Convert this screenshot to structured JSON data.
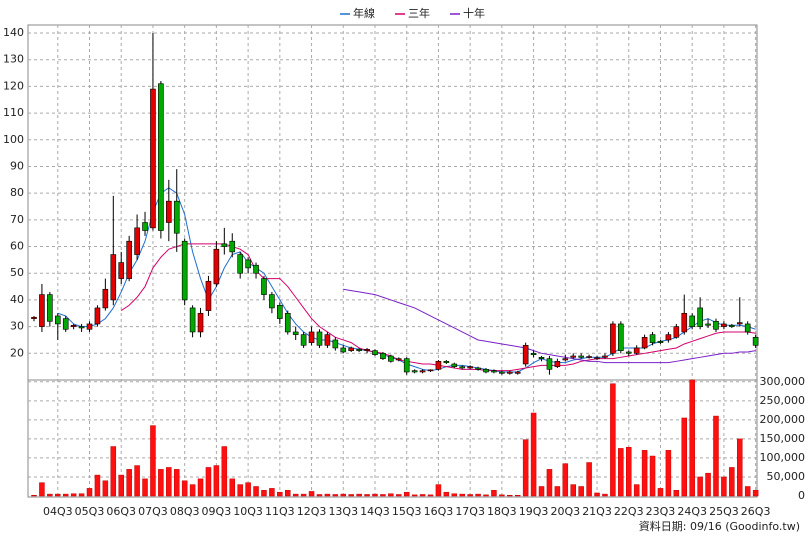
{
  "chart_data": {
    "type": "candlestick",
    "categories": [
      null,
      null,
      null,
      "04Q3",
      null,
      null,
      null,
      "05Q3",
      null,
      null,
      null,
      "06Q3",
      null,
      null,
      null,
      "07Q3",
      null,
      null,
      null,
      "08Q3",
      null,
      null,
      null,
      "09Q3",
      null,
      null,
      null,
      "10Q3",
      null,
      null,
      null,
      "11Q3",
      null,
      null,
      null,
      "12Q3",
      null,
      null,
      null,
      "13Q3",
      null,
      null,
      null,
      "14Q3",
      null,
      null,
      null,
      "15Q3",
      null,
      null,
      null,
      "16Q3",
      null,
      null,
      null,
      "17Q3",
      null,
      null,
      null,
      "18Q3",
      null,
      null,
      null,
      "19Q3",
      null,
      null,
      null,
      "20Q3",
      null,
      null,
      null,
      "21Q3",
      null,
      null,
      null,
      "22Q3",
      null,
      null,
      null,
      "23Q3",
      null,
      null,
      null,
      "24Q3",
      null,
      null,
      null,
      "25Q3",
      null,
      null,
      null,
      "26Q3"
    ],
    "open": [
      33,
      30,
      42,
      34,
      33,
      30,
      30,
      29,
      31,
      37,
      40,
      48,
      48,
      57,
      69,
      67,
      121,
      69,
      77,
      62,
      37,
      28,
      36,
      46,
      61,
      62,
      57,
      55,
      53,
      48,
      42,
      38,
      35,
      28,
      27,
      24,
      28,
      23,
      25,
      22,
      21,
      21.5,
      21,
      21,
      20,
      19,
      17.5,
      18,
      13.5,
      13,
      13.5,
      14,
      17,
      16,
      15,
      14.5,
      14.5,
      14,
      13.5,
      13,
      12.5,
      12.5,
      16,
      20,
      18.5,
      18,
      15,
      17.5,
      18.5,
      19,
      18.5,
      18,
      18.5,
      20,
      31,
      20.5,
      20,
      22,
      27,
      24.5,
      25,
      26,
      28,
      34,
      37,
      31,
      32,
      30,
      30.5,
      31,
      31,
      26
    ],
    "high": [
      34,
      46,
      43,
      35,
      34,
      31,
      31,
      32,
      38,
      48,
      79,
      58,
      64,
      72,
      73,
      140,
      122,
      85,
      89,
      63,
      38,
      37,
      49,
      62,
      67,
      65,
      58,
      56,
      54,
      49,
      43,
      39,
      36,
      30,
      28,
      30,
      29,
      28,
      26,
      23,
      22.5,
      22,
      22,
      21.5,
      20.5,
      19.5,
      18.5,
      18.5,
      14,
      14,
      14,
      17.5,
      17.5,
      16.5,
      15.5,
      15.5,
      15,
      14.5,
      14,
      13.5,
      13.5,
      13.5,
      24,
      21,
      19,
      19,
      18,
      19.5,
      20,
      20,
      19.5,
      19,
      20,
      32,
      32,
      21,
      23,
      27,
      28,
      25,
      28,
      31,
      42,
      35,
      41,
      33,
      33,
      32,
      31,
      41,
      32,
      27
    ],
    "low": [
      32,
      28,
      30,
      25,
      28,
      29,
      28,
      28,
      30,
      36,
      38,
      46,
      47,
      55,
      64,
      66,
      63,
      62,
      58,
      38,
      26,
      26,
      34,
      45,
      57,
      56,
      48,
      50,
      48,
      40,
      35,
      31,
      27,
      25,
      22,
      23,
      22,
      22,
      21,
      20,
      20.5,
      20.5,
      20,
      19,
      17.5,
      16.5,
      17,
      12,
      12.5,
      12.5,
      13,
      13.5,
      16,
      14.5,
      14,
      14,
      13.5,
      12.5,
      12.5,
      12,
      12,
      12,
      15,
      18.5,
      17,
      12,
      14.5,
      17,
      18,
      18,
      18,
      17.5,
      18,
      19,
      20,
      19,
      19.5,
      21.5,
      23,
      23.5,
      24,
      25.5,
      27,
      29,
      29,
      29.5,
      28,
      29,
      29.5,
      30,
      27,
      22
    ],
    "close": [
      33.5,
      42,
      32,
      31,
      29,
      30.5,
      29.5,
      31,
      37,
      44,
      57,
      54,
      62,
      67,
      66,
      119,
      66,
      77,
      65,
      40,
      28,
      35,
      47,
      59,
      60,
      58,
      50,
      52,
      50,
      42,
      37,
      33,
      28,
      27,
      23,
      28,
      23,
      27,
      22,
      20.5,
      22,
      21,
      21.5,
      19.5,
      18,
      17,
      18,
      13,
      13,
      13.5,
      13.8,
      17,
      16.5,
      15,
      14.5,
      15,
      14,
      13,
      13,
      12.5,
      13,
      13,
      23,
      19.5,
      18,
      14,
      17,
      18,
      19,
      18.5,
      18.8,
      18.3,
      19,
      31,
      21,
      20,
      22,
      26,
      24,
      24,
      27,
      30,
      35,
      30,
      30,
      30.5,
      29,
      31,
      30,
      31.5,
      28,
      23
    ],
    "up_color": "#e00000",
    "down_color": "#00a800",
    "series": [
      {
        "name": "年線",
        "color": "#1f6fd0",
        "values": [
          null,
          null,
          null,
          35,
          34,
          31,
          30,
          30,
          31,
          33,
          37,
          43,
          50,
          55,
          62,
          73,
          80,
          82,
          80,
          72,
          58,
          48,
          40,
          45,
          52,
          57,
          58,
          54,
          52,
          50,
          45,
          40,
          35,
          31,
          28,
          26,
          25,
          25,
          24,
          23,
          22,
          21.5,
          21,
          20.5,
          19.5,
          18.5,
          17.5,
          16,
          15,
          14,
          13.5,
          14,
          15,
          15.5,
          15.5,
          15,
          14.5,
          14,
          13.5,
          13,
          13,
          13,
          14.5,
          16.5,
          18,
          17,
          16.5,
          16.5,
          17.5,
          18,
          18.5,
          18.5,
          18.5,
          20,
          22,
          22,
          22,
          22,
          23.5,
          24.5,
          25,
          26,
          28,
          30,
          32,
          33,
          31.5,
          30.5,
          30.5,
          30.5,
          30,
          29
        ]
      },
      {
        "name": "三年",
        "color": "#d4006a",
        "values": [
          null,
          null,
          null,
          null,
          null,
          null,
          null,
          null,
          null,
          null,
          null,
          36,
          38,
          41,
          45,
          52,
          56,
          59,
          60,
          61,
          61,
          61,
          61,
          61,
          61,
          60,
          59,
          57,
          51,
          48,
          48,
          48,
          45,
          41,
          37,
          33,
          30,
          28,
          26,
          25,
          24,
          22,
          21,
          20.5,
          20,
          19,
          17.5,
          17,
          16.5,
          16,
          16,
          15.5,
          15,
          14.5,
          14,
          14,
          14,
          13.5,
          13.5,
          13.5,
          13.5,
          14,
          14.5,
          15,
          15.5,
          15.5,
          15.5,
          15.5,
          16,
          17,
          17.5,
          18,
          18,
          18,
          18.5,
          19,
          19.5,
          20,
          20.5,
          21,
          21.5,
          22,
          23.5,
          24.5,
          25.5,
          26.5,
          27.5,
          28,
          28,
          28,
          28,
          27.5
        ]
      },
      {
        "name": "十年",
        "color": "#7a20c8",
        "values": [
          null,
          null,
          null,
          null,
          null,
          null,
          null,
          null,
          null,
          null,
          null,
          null,
          null,
          null,
          null,
          null,
          null,
          null,
          null,
          null,
          null,
          null,
          null,
          null,
          null,
          null,
          null,
          null,
          null,
          null,
          null,
          null,
          null,
          null,
          null,
          null,
          null,
          null,
          null,
          44,
          43.5,
          43,
          42.5,
          42,
          41,
          40,
          39,
          38,
          37,
          35.5,
          34,
          32.5,
          31,
          29.5,
          28,
          26.5,
          25,
          24.5,
          24,
          23.5,
          23,
          22.5,
          22,
          21,
          20,
          19.5,
          19,
          18.5,
          18,
          17.5,
          17,
          17,
          16.5,
          16.5,
          16.5,
          16.5,
          16.5,
          16.5,
          16.5,
          16.5,
          16.5,
          17,
          17.5,
          18,
          18.5,
          19,
          19.5,
          20,
          20,
          20.5,
          20.5,
          21
        ]
      }
    ],
    "ylim": [
      10,
      143
    ],
    "yticks": [
      20,
      30,
      40,
      50,
      60,
      70,
      80,
      90,
      100,
      110,
      120,
      130,
      140
    ],
    "grid": true,
    "volume": {
      "color": "#ff1010",
      "values": [
        2000,
        35000,
        5000,
        5000,
        5000,
        6000,
        6000,
        20000,
        55000,
        40000,
        130000,
        55000,
        70000,
        80000,
        45000,
        185000,
        70000,
        75000,
        70000,
        40000,
        30000,
        45000,
        75000,
        80000,
        130000,
        45000,
        30000,
        35000,
        25000,
        15000,
        20000,
        10000,
        15000,
        5000,
        5000,
        12000,
        4000,
        5000,
        4000,
        5000,
        4000,
        5000,
        4000,
        5000,
        4000,
        6000,
        4000,
        10000,
        3000,
        4000,
        3000,
        30000,
        10000,
        6000,
        5000,
        4000,
        5000,
        3000,
        15000,
        3000,
        2000,
        2000,
        148000,
        218000,
        25000,
        70000,
        25000,
        85000,
        30000,
        25000,
        88000,
        8000,
        5000,
        295000,
        125000,
        128000,
        30000,
        120000,
        105000,
        20000,
        120000,
        15000,
        205000,
        305000,
        50000,
        60000,
        210000,
        50000,
        75000,
        150000,
        25000,
        15000
      ],
      "ylim": [
        0,
        310000
      ],
      "yticks": [
        0,
        {
          "value": 50000,
          "label": "50,000"
        },
        {
          "value": 100000,
          "label": "100,000"
        },
        {
          "value": 150000,
          "label": "150,000"
        },
        {
          "value": 200000,
          "label": "200,000"
        },
        {
          "value": 250000,
          "label": "250,000"
        },
        {
          "value": 300000,
          "label": "300,000"
        }
      ]
    },
    "footer": "資料日期: 09/16  (Goodinfo.tw)"
  }
}
